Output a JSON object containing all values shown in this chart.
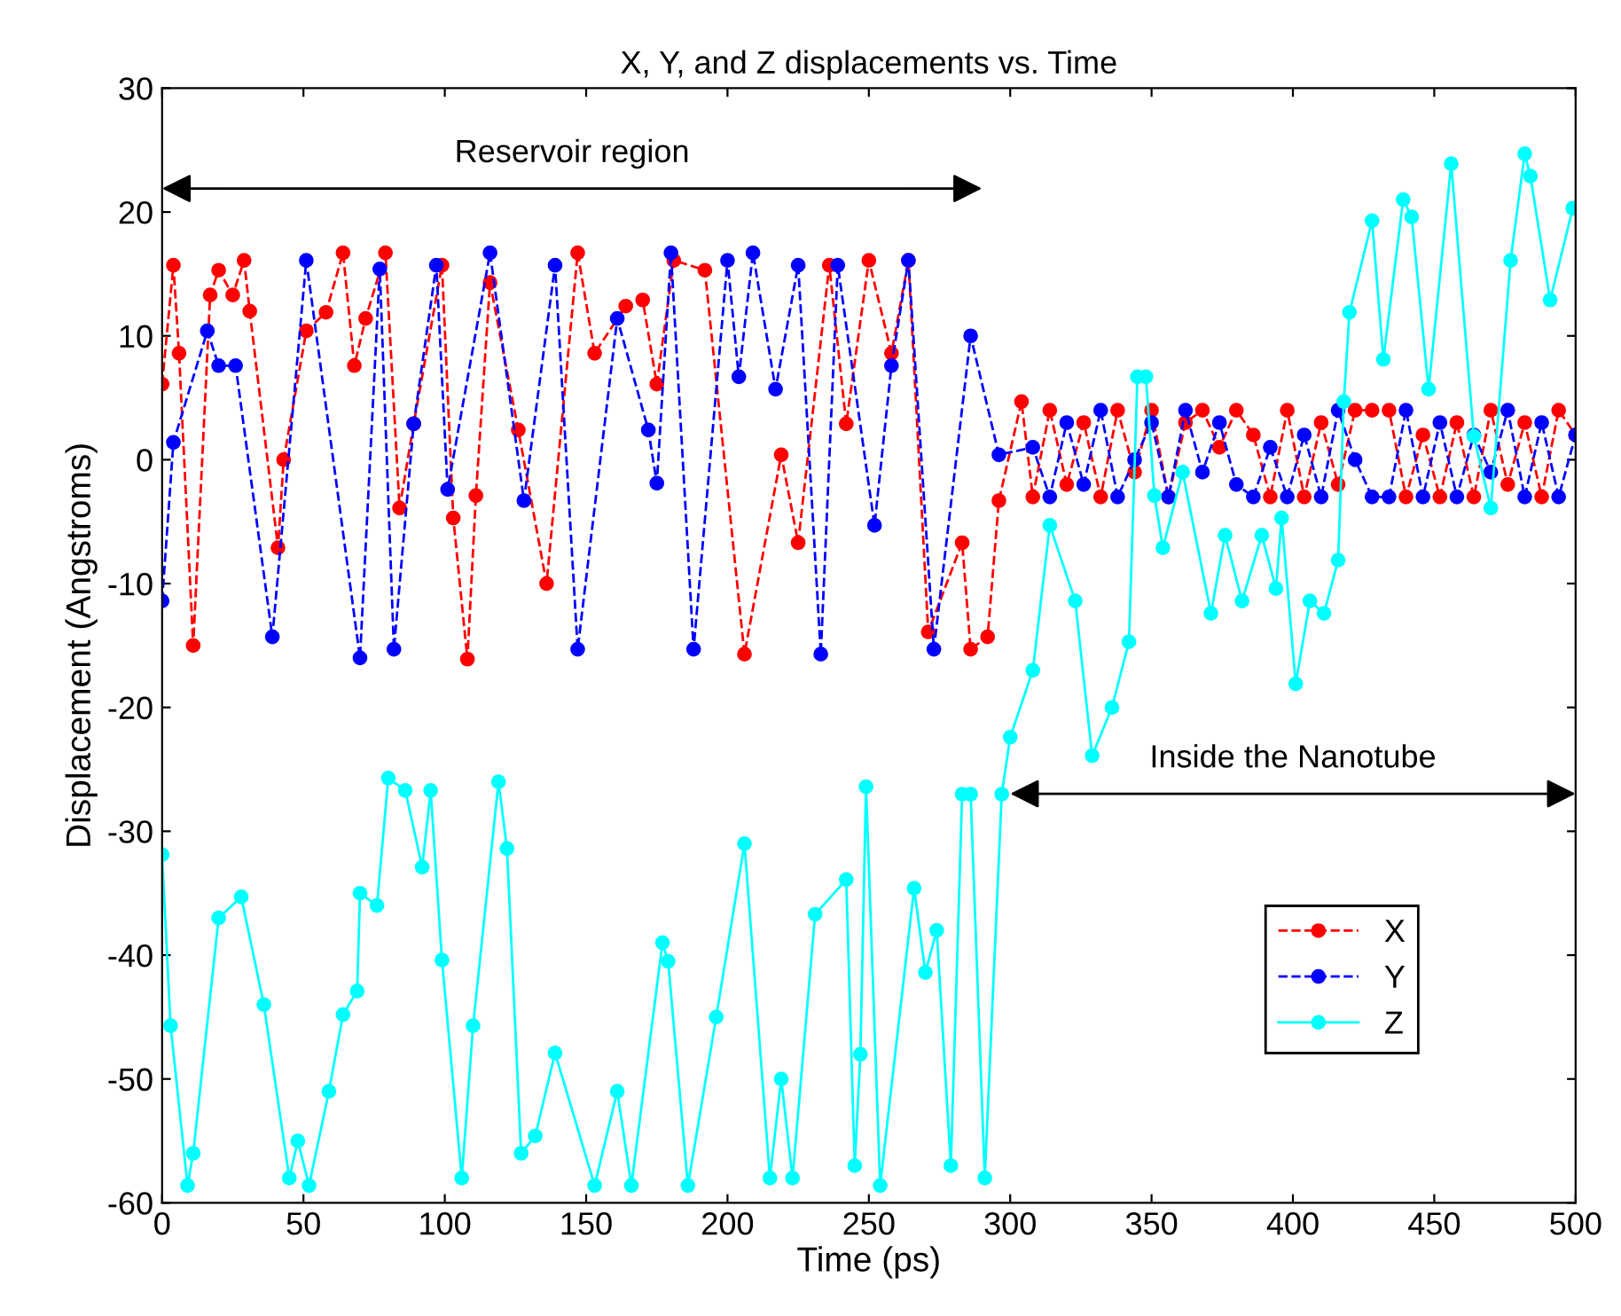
{
  "chart_data": {
    "type": "line",
    "title": "X, Y, and Z displacements vs. Time",
    "xlabel": "Time (ps)",
    "ylabel": "Displacement (Angstroms)",
    "xlim": [
      0,
      500
    ],
    "xticks": [
      0,
      50,
      100,
      150,
      200,
      250,
      300,
      350,
      400,
      450,
      500
    ],
    "ylim": [
      -60,
      30
    ],
    "yticks": [
      -60,
      -50,
      -40,
      -30,
      -20,
      -10,
      0,
      10,
      20,
      30
    ],
    "grid": false,
    "legend": "bottom right",
    "marker": "circle",
    "annotations": [
      "Reservoir region",
      "Inside the Nanotube"
    ],
    "series": [
      {
        "name": "X",
        "color": "#ff0000",
        "line_style": "dashed",
        "x": [
          0,
          4,
          6,
          11,
          17,
          20,
          25,
          29,
          31,
          41,
          43,
          51,
          58,
          64,
          68,
          72,
          79,
          84,
          89,
          99,
          103,
          108,
          111,
          116,
          126,
          136,
          147,
          153,
          164,
          170,
          175,
          181,
          192,
          206,
          219,
          225,
          236,
          242,
          250,
          258,
          264,
          271,
          283,
          286,
          292,
          296,
          304,
          308,
          314,
          320,
          326,
          332,
          338,
          344,
          350,
          356,
          362,
          368,
          374,
          380,
          386,
          392,
          398,
          404,
          410,
          416,
          422,
          428,
          434,
          440,
          446,
          452,
          458,
          464,
          470,
          476,
          482,
          488,
          494,
          500
        ],
        "values": [
          6.1,
          15.7,
          8.6,
          -15,
          13.3,
          15.3,
          13.3,
          16.1,
          12,
          -7.1,
          0,
          10.4,
          11.9,
          16.7,
          7.6,
          11.4,
          16.7,
          -3.9,
          2.9,
          15.7,
          -4.7,
          -16.1,
          -2.9,
          14.3,
          2.4,
          -10,
          16.7,
          8.6,
          12.4,
          12.9,
          6.1,
          16.1,
          15.3,
          -15.7,
          0.4,
          -6.7,
          15.7,
          2.9,
          16.1,
          8.6,
          16.1,
          -13.9,
          -6.7,
          -15.3,
          -14.3,
          -3.3,
          4.7,
          -3,
          4,
          -2,
          3,
          -3,
          4,
          -1,
          4,
          -3,
          3,
          4,
          1,
          4,
          2,
          -3,
          4,
          -3,
          3,
          -2,
          4,
          4,
          4,
          -3,
          2,
          -3,
          3,
          -3,
          4,
          -2,
          3,
          -3,
          4,
          2
        ]
      },
      {
        "name": "Y",
        "color": "#0000ff",
        "line_style": "dashed",
        "x": [
          0,
          4,
          16,
          20,
          26,
          39,
          51,
          70,
          77,
          82,
          89,
          97,
          101,
          116,
          128,
          139,
          147,
          161,
          172,
          175,
          180,
          188,
          200,
          204,
          209,
          217,
          225,
          233,
          239,
          252,
          258,
          264,
          273,
          286,
          296,
          308,
          314,
          320,
          326,
          332,
          338,
          344,
          350,
          356,
          362,
          368,
          374,
          380,
          386,
          392,
          398,
          404,
          410,
          416,
          422,
          428,
          434,
          440,
          446,
          452,
          458,
          464,
          470,
          476,
          482,
          488,
          494,
          500
        ],
        "values": [
          -11.4,
          1.4,
          10.4,
          7.6,
          7.6,
          -14.3,
          16.1,
          -16,
          15.4,
          -15.3,
          2.9,
          15.7,
          -2.4,
          16.7,
          -3.3,
          15.7,
          -15.3,
          11.4,
          2.4,
          -1.9,
          16.7,
          -15.3,
          16.1,
          6.7,
          16.7,
          5.7,
          15.7,
          -15.7,
          15.7,
          -5.3,
          7.6,
          16.1,
          -15.3,
          10,
          0.4,
          1,
          -3,
          3,
          -2,
          4,
          -3,
          0,
          3,
          -3,
          4,
          -1,
          3,
          -2,
          -3,
          1,
          -3,
          2,
          -3,
          4,
          0,
          -3,
          -3,
          4,
          -3,
          3,
          -3,
          2,
          -1,
          4,
          -3,
          3,
          -3,
          2
        ]
      },
      {
        "name": "Z",
        "color": "#00ffff",
        "line_style": "solid",
        "x": [
          0,
          3,
          9,
          11,
          20,
          28,
          36,
          45,
          48,
          52,
          59,
          64,
          69,
          70,
          76,
          80,
          86,
          92,
          95,
          99,
          106,
          110,
          119,
          122,
          127,
          132,
          139,
          153,
          161,
          166,
          177,
          179,
          186,
          196,
          206,
          215,
          219,
          223,
          231,
          242,
          245,
          247,
          249,
          254,
          266,
          270,
          274,
          279,
          283,
          286,
          291,
          297,
          300,
          308,
          314,
          323,
          329,
          336,
          342,
          345,
          348,
          351,
          354,
          361,
          371,
          376,
          382,
          389,
          394,
          396,
          401,
          406,
          411,
          416,
          418,
          420,
          428,
          432,
          439,
          442,
          448,
          456,
          464,
          470,
          477,
          482,
          484,
          491,
          499
        ],
        "values": [
          -31.9,
          -45.7,
          -58.6,
          -56,
          -37,
          -35.3,
          -44,
          -58,
          -55,
          -58.6,
          -51,
          -44.8,
          -42.9,
          -35,
          -36,
          -25.7,
          -26.7,
          -32.9,
          -26.7,
          -40.4,
          -58,
          -45.7,
          -26,
          -31.4,
          -56,
          -54.6,
          -47.9,
          -58.6,
          -51,
          -58.6,
          -39,
          -40.5,
          -58.6,
          -45,
          -31,
          -58,
          -50,
          -58,
          -36.7,
          -33.9,
          -57,
          -48,
          -26.4,
          -58.6,
          -34.6,
          -41.4,
          -38,
          -57,
          -27,
          -27,
          -58,
          -27,
          -22.4,
          -17,
          -5.3,
          -11.4,
          -23.9,
          -20,
          -14.7,
          6.7,
          6.7,
          -2.9,
          -7.1,
          -1,
          -12.4,
          -6.1,
          -11.4,
          -6.1,
          -10.4,
          -4.7,
          -18.1,
          -11.4,
          -12.4,
          -8.1,
          4.7,
          11.9,
          19.3,
          8.1,
          21,
          19.6,
          5.7,
          23.9,
          1.9,
          -3.9,
          16.1,
          24.7,
          22.9,
          12.9,
          20.3
        ]
      }
    ]
  }
}
